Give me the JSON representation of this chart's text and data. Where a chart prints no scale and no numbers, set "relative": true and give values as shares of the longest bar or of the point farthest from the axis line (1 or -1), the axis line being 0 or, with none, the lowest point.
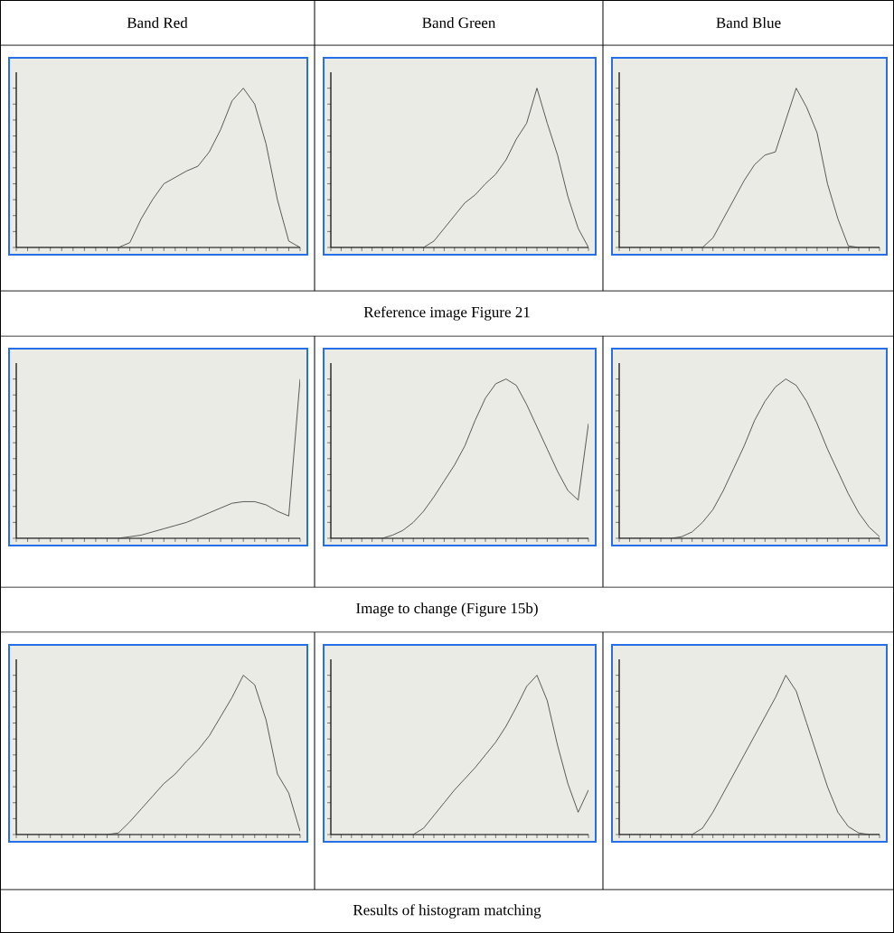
{
  "chart_data": [
    {
      "type": "line",
      "relative": true,
      "title": "Band Red",
      "annotations": [
        "Reference image Figure 21"
      ],
      "categories": [
        null,
        null,
        null,
        null,
        null,
        null,
        null,
        null,
        null,
        null,
        null,
        null,
        null,
        null,
        null,
        null,
        null,
        null,
        null,
        null,
        null,
        null,
        null,
        null,
        null,
        null
      ],
      "series": [
        {
          "color": "#333333",
          "values": [
            0,
            0,
            0,
            0,
            0,
            0,
            0,
            0,
            0,
            0,
            0.03,
            0.18,
            0.3,
            0.4,
            0.44,
            0.48,
            0.51,
            0.6,
            0.74,
            0.92,
            1.0,
            0.9,
            0.65,
            0.3,
            0.04,
            0
          ]
        }
      ]
    },
    {
      "type": "line",
      "relative": true,
      "title": "Band Green",
      "categories": [
        null,
        null,
        null,
        null,
        null,
        null,
        null,
        null,
        null,
        null,
        null,
        null,
        null,
        null,
        null,
        null,
        null,
        null,
        null,
        null,
        null,
        null,
        null,
        null,
        null,
        null
      ],
      "series": [
        {
          "color": "#333333",
          "values": [
            0,
            0,
            0,
            0,
            0,
            0,
            0,
            0,
            0,
            0,
            0.04,
            0.12,
            0.2,
            0.28,
            0.33,
            0.4,
            0.46,
            0.55,
            0.68,
            0.78,
            1.0,
            0.78,
            0.58,
            0.32,
            0.12,
            0
          ]
        }
      ]
    },
    {
      "type": "line",
      "relative": true,
      "title": "Band Blue",
      "categories": [
        null,
        null,
        null,
        null,
        null,
        null,
        null,
        null,
        null,
        null,
        null,
        null,
        null,
        null,
        null,
        null,
        null,
        null,
        null,
        null,
        null,
        null,
        null,
        null,
        null,
        null
      ],
      "series": [
        {
          "color": "#333333",
          "values": [
            0,
            0,
            0,
            0,
            0,
            0,
            0,
            0,
            0,
            0.06,
            0.18,
            0.3,
            0.42,
            0.52,
            0.58,
            0.6,
            0.8,
            1.0,
            0.88,
            0.72,
            0.4,
            0.18,
            0.01,
            0,
            0,
            0
          ]
        }
      ]
    },
    {
      "type": "line",
      "relative": true,
      "annotations": [
        "Image to change (Figure 15b)"
      ],
      "categories": [
        null,
        null,
        null,
        null,
        null,
        null,
        null,
        null,
        null,
        null,
        null,
        null,
        null,
        null,
        null,
        null,
        null,
        null,
        null,
        null,
        null,
        null,
        null,
        null,
        null,
        null
      ],
      "series": [
        {
          "color": "#333333",
          "values": [
            0,
            0,
            0,
            0,
            0,
            0,
            0,
            0,
            0,
            0,
            0.01,
            0.02,
            0.04,
            0.06,
            0.08,
            0.1,
            0.13,
            0.16,
            0.19,
            0.22,
            0.23,
            0.23,
            0.21,
            0.17,
            0.14,
            1.0
          ]
        }
      ]
    },
    {
      "type": "line",
      "relative": true,
      "categories": [
        null,
        null,
        null,
        null,
        null,
        null,
        null,
        null,
        null,
        null,
        null,
        null,
        null,
        null,
        null,
        null,
        null,
        null,
        null,
        null,
        null,
        null,
        null,
        null,
        null,
        null
      ],
      "series": [
        {
          "color": "#333333",
          "values": [
            0,
            0,
            0,
            0,
            0,
            0,
            0.02,
            0.05,
            0.1,
            0.17,
            0.26,
            0.36,
            0.46,
            0.58,
            0.74,
            0.88,
            0.97,
            1.0,
            0.96,
            0.84,
            0.7,
            0.56,
            0.42,
            0.3,
            0.24,
            0.72
          ]
        }
      ]
    },
    {
      "type": "line",
      "relative": true,
      "categories": [
        null,
        null,
        null,
        null,
        null,
        null,
        null,
        null,
        null,
        null,
        null,
        null,
        null,
        null,
        null,
        null,
        null,
        null,
        null,
        null,
        null,
        null,
        null,
        null,
        null,
        null
      ],
      "series": [
        {
          "color": "#333333",
          "values": [
            0,
            0,
            0,
            0,
            0,
            0,
            0.01,
            0.04,
            0.1,
            0.18,
            0.3,
            0.44,
            0.58,
            0.74,
            0.86,
            0.95,
            1.0,
            0.96,
            0.86,
            0.72,
            0.56,
            0.42,
            0.28,
            0.16,
            0.07,
            0.01
          ]
        }
      ]
    },
    {
      "type": "line",
      "relative": true,
      "annotations": [
        "Results of histogram matching"
      ],
      "categories": [
        null,
        null,
        null,
        null,
        null,
        null,
        null,
        null,
        null,
        null,
        null,
        null,
        null,
        null,
        null,
        null,
        null,
        null,
        null,
        null,
        null,
        null,
        null,
        null,
        null,
        null
      ],
      "series": [
        {
          "color": "#333333",
          "values": [
            0,
            0,
            0,
            0,
            0,
            0,
            0,
            0,
            0,
            0.01,
            0.08,
            0.16,
            0.24,
            0.32,
            0.38,
            0.46,
            0.53,
            0.62,
            0.74,
            0.86,
            1.0,
            0.94,
            0.72,
            0.38,
            0.26,
            0.02
          ]
        }
      ]
    },
    {
      "type": "line",
      "relative": true,
      "categories": [
        null,
        null,
        null,
        null,
        null,
        null,
        null,
        null,
        null,
        null,
        null,
        null,
        null,
        null,
        null,
        null,
        null,
        null,
        null,
        null,
        null,
        null,
        null,
        null,
        null,
        null
      ],
      "series": [
        {
          "color": "#333333",
          "values": [
            0,
            0,
            0,
            0,
            0,
            0,
            0,
            0,
            0,
            0.04,
            0.12,
            0.2,
            0.28,
            0.35,
            0.42,
            0.5,
            0.58,
            0.68,
            0.8,
            0.93,
            1.0,
            0.84,
            0.56,
            0.32,
            0.14,
            0.28
          ]
        }
      ]
    },
    {
      "type": "line",
      "relative": true,
      "categories": [
        null,
        null,
        null,
        null,
        null,
        null,
        null,
        null,
        null,
        null,
        null,
        null,
        null,
        null,
        null,
        null,
        null,
        null,
        null,
        null,
        null,
        null,
        null,
        null,
        null,
        null
      ],
      "series": [
        {
          "color": "#333333",
          "values": [
            0,
            0,
            0,
            0,
            0,
            0,
            0,
            0,
            0.04,
            0.14,
            0.26,
            0.38,
            0.5,
            0.62,
            0.74,
            0.86,
            1.0,
            0.9,
            0.7,
            0.5,
            0.3,
            0.14,
            0.05,
            0.01,
            0,
            0
          ]
        }
      ]
    }
  ]
}
